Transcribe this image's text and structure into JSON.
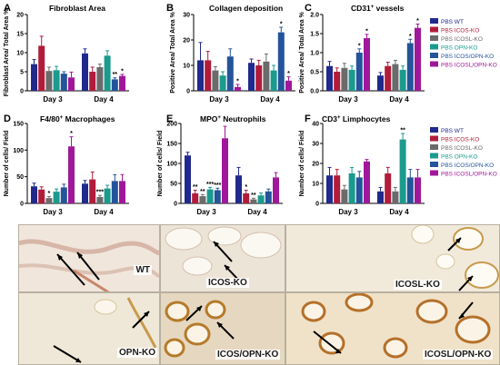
{
  "colors": {
    "wt": "#1f2a8c",
    "icos": "#b01c3a",
    "icosl": "#6b6b6b",
    "opn": "#1b9a8e",
    "icosopn": "#24549a",
    "icoslopn": "#a0189a"
  },
  "legend": [
    {
      "key": "wt",
      "label": "PBS WT"
    },
    {
      "key": "icos",
      "label": "PBS ICOS-KO"
    },
    {
      "key": "icosl",
      "label": "PBS ICOSL-KO"
    },
    {
      "key": "opn",
      "label": "PBS OPN-KO"
    },
    {
      "key": "icosopn",
      "label": "PBS ICOS/OPN-KO"
    },
    {
      "key": "icoslopn",
      "label": "PBS ICOSL/OPN-KO"
    }
  ],
  "chart_data": [
    {
      "type": "bar",
      "letter": "A",
      "title": "Fibroblast Area",
      "title_super": "",
      "ylabel": "Fibroblast Area/ Total Area %",
      "ylim": [
        0,
        20
      ],
      "yticks": [
        "0",
        "5",
        "10",
        "15",
        "20"
      ],
      "categories": [
        "Day 3",
        "Day 4"
      ],
      "series": [
        {
          "key": "wt",
          "values": [
            7,
            9.8
          ],
          "errors": [
            1.2,
            1.2
          ],
          "marks": [
            "",
            ""
          ]
        },
        {
          "key": "icos",
          "values": [
            11.8,
            5
          ],
          "errors": [
            2.5,
            1.2
          ],
          "marks": [
            "",
            ""
          ]
        },
        {
          "key": "icosl",
          "values": [
            5.2,
            6.2
          ],
          "errors": [
            1,
            0.8
          ],
          "marks": [
            "",
            ""
          ]
        },
        {
          "key": "opn",
          "values": [
            5.4,
            9.2
          ],
          "errors": [
            1,
            1.3
          ],
          "marks": [
            "",
            ""
          ]
        },
        {
          "key": "icosopn",
          "values": [
            4.5,
            3
          ],
          "errors": [
            0.5,
            0.4
          ],
          "marks": [
            "",
            "**"
          ]
        },
        {
          "key": "icoslopn",
          "values": [
            3.5,
            3.9
          ],
          "errors": [
            1.4,
            0.4
          ],
          "marks": [
            "",
            "*"
          ]
        }
      ]
    },
    {
      "type": "bar",
      "letter": "B",
      "title": "Collagen deposition",
      "title_super": "",
      "ylabel": "Positive Area/ Total Area %",
      "ylim": [
        0,
        30
      ],
      "yticks": [
        "0",
        "10",
        "20",
        "30"
      ],
      "categories": [
        "Day 3",
        "Day 4"
      ],
      "series": [
        {
          "key": "wt",
          "values": [
            12,
            11
          ],
          "errors": [
            7,
            1.5
          ],
          "marks": [
            "",
            ""
          ]
        },
        {
          "key": "icos",
          "values": [
            12,
            10
          ],
          "errors": [
            3.5,
            2
          ],
          "marks": [
            "",
            ""
          ]
        },
        {
          "key": "icosl",
          "values": [
            8,
            11.5
          ],
          "errors": [
            1.5,
            3
          ],
          "marks": [
            "",
            ""
          ]
        },
        {
          "key": "opn",
          "values": [
            6,
            8
          ],
          "errors": [
            1.5,
            2
          ],
          "marks": [
            "",
            ""
          ]
        },
        {
          "key": "icosopn",
          "values": [
            13.5,
            23
          ],
          "errors": [
            3,
            2
          ],
          "marks": [
            "",
            "*"
          ]
        },
        {
          "key": "icoslopn",
          "values": [
            1.5,
            4
          ],
          "errors": [
            1,
            1.5
          ],
          "marks": [
            "*",
            "*"
          ]
        }
      ]
    },
    {
      "type": "bar",
      "letter": "C",
      "title": "CD31",
      "title_super": "+",
      "title_rest": " vessels",
      "ylabel": "Positive Area/ Total Area %",
      "ylim": [
        0,
        2.0
      ],
      "yticks": [
        "0.0",
        "0.5",
        "1.0",
        "1.5",
        "2.0"
      ],
      "categories": [
        "Day 3",
        "Day 4"
      ],
      "series": [
        {
          "key": "wt",
          "values": [
            0.65,
            0.4
          ],
          "errors": [
            0.12,
            0.08
          ],
          "marks": [
            "",
            ""
          ]
        },
        {
          "key": "icos",
          "values": [
            0.5,
            0.65
          ],
          "errors": [
            0.1,
            0.1
          ],
          "marks": [
            "",
            ""
          ]
        },
        {
          "key": "icosl",
          "values": [
            0.6,
            0.7
          ],
          "errors": [
            0.12,
            0.1
          ],
          "marks": [
            "",
            ""
          ]
        },
        {
          "key": "opn",
          "values": [
            0.55,
            0.55
          ],
          "errors": [
            0.1,
            0.1
          ],
          "marks": [
            "",
            ""
          ]
        },
        {
          "key": "icosopn",
          "values": [
            1.0,
            1.25
          ],
          "errors": [
            0.1,
            0.1
          ],
          "marks": [
            "*",
            "*"
          ]
        },
        {
          "key": "icoslopn",
          "values": [
            1.38,
            1.65
          ],
          "errors": [
            0.1,
            0.1
          ],
          "marks": [
            "*",
            "*"
          ]
        }
      ]
    },
    {
      "type": "bar",
      "letter": "D",
      "title": "F4/80",
      "title_super": "+",
      "title_rest": " Macrophages",
      "ylabel": "Number of cells/ Field",
      "ylim": [
        0,
        150
      ],
      "yticks": [
        "0",
        "50",
        "100",
        "150"
      ],
      "categories": [
        "Day 3",
        "Day 4"
      ],
      "series": [
        {
          "key": "wt",
          "values": [
            32,
            37
          ],
          "errors": [
            6,
            6
          ],
          "marks": [
            "",
            ""
          ]
        },
        {
          "key": "icos",
          "values": [
            26,
            45
          ],
          "errors": [
            5,
            14
          ],
          "marks": [
            "",
            ""
          ]
        },
        {
          "key": "icosl",
          "values": [
            10,
            12
          ],
          "errors": [
            3,
            3
          ],
          "marks": [
            "*",
            "***"
          ]
        },
        {
          "key": "opn",
          "values": [
            22,
            28
          ],
          "errors": [
            5,
            6
          ],
          "marks": [
            "",
            ""
          ]
        },
        {
          "key": "icosopn",
          "values": [
            30,
            42
          ],
          "errors": [
            6,
            12
          ],
          "marks": [
            "",
            ""
          ]
        },
        {
          "key": "icoslopn",
          "values": [
            107,
            42
          ],
          "errors": [
            18,
            12
          ],
          "marks": [
            "*",
            ""
          ]
        }
      ]
    },
    {
      "type": "bar",
      "letter": "E",
      "title": "MPO",
      "title_super": "+",
      "title_rest": " Neutrophils",
      "ylabel": "Number of cells/ Field",
      "ylim": [
        0,
        200
      ],
      "yticks": [
        "0",
        "50",
        "100",
        "150",
        "200"
      ],
      "categories": [
        "Day 3",
        "Day 4"
      ],
      "series": [
        {
          "key": "wt",
          "values": [
            120,
            70
          ],
          "errors": [
            8,
            20
          ],
          "marks": [
            "",
            ""
          ]
        },
        {
          "key": "icos",
          "values": [
            25,
            25
          ],
          "errors": [
            8,
            8
          ],
          "marks": [
            "**",
            "*"
          ]
        },
        {
          "key": "icosl",
          "values": [
            18,
            10
          ],
          "errors": [
            4,
            3
          ],
          "marks": [
            "**",
            "**"
          ]
        },
        {
          "key": "opn",
          "values": [
            35,
            20
          ],
          "errors": [
            5,
            6
          ],
          "marks": [
            "***",
            ""
          ]
        },
        {
          "key": "icosopn",
          "values": [
            33,
            30
          ],
          "errors": [
            5,
            6
          ],
          "marks": [
            "***",
            ""
          ]
        },
        {
          "key": "icoslopn",
          "values": [
            163,
            65
          ],
          "errors": [
            30,
            12
          ],
          "marks": [
            "",
            ""
          ]
        }
      ]
    },
    {
      "type": "bar",
      "letter": "F",
      "title": "CD3",
      "title_super": "+",
      "title_rest": " Limphocytes",
      "ylabel": "Number of cells/ Field",
      "ylim": [
        0,
        40
      ],
      "yticks": [
        "0",
        "10",
        "20",
        "30",
        "40"
      ],
      "categories": [
        "Day 3",
        "Day 4"
      ],
      "series": [
        {
          "key": "wt",
          "values": [
            14,
            6
          ],
          "errors": [
            4,
            2
          ],
          "marks": [
            "",
            ""
          ]
        },
        {
          "key": "icos",
          "values": [
            14,
            15
          ],
          "errors": [
            3,
            3
          ],
          "marks": [
            "",
            ""
          ]
        },
        {
          "key": "icosl",
          "values": [
            7,
            6
          ],
          "errors": [
            2,
            2
          ],
          "marks": [
            "",
            ""
          ]
        },
        {
          "key": "opn",
          "values": [
            15,
            32
          ],
          "errors": [
            3,
            3
          ],
          "marks": [
            "",
            "**"
          ]
        },
        {
          "key": "icosopn",
          "values": [
            13,
            13
          ],
          "errors": [
            3,
            4
          ],
          "marks": [
            "",
            ""
          ]
        },
        {
          "key": "icoslopn",
          "values": [
            21,
            13
          ],
          "errors": [
            1,
            4
          ],
          "marks": [
            "",
            ""
          ]
        }
      ]
    }
  ],
  "micrographs": [
    {
      "label": "WT"
    },
    {
      "label": "ICOS-KO"
    },
    {
      "label": "ICOSL-KO"
    },
    {
      "label": "OPN-KO"
    },
    {
      "label": "ICOS/OPN-KO"
    },
    {
      "label": "ICOSL/OPN-KO"
    }
  ]
}
